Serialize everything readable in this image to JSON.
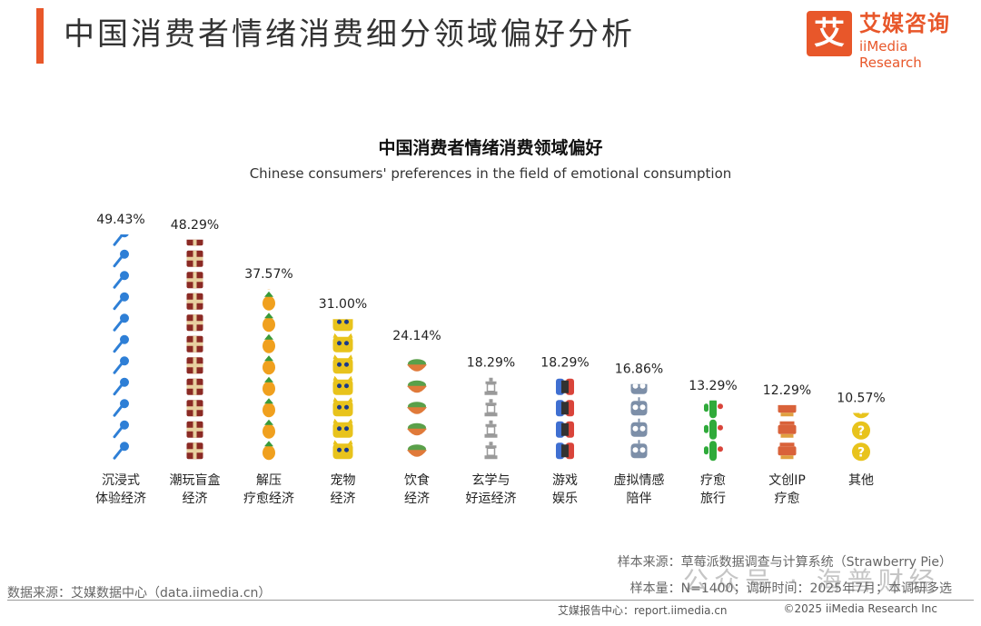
{
  "header": {
    "title": "中国消费者情绪消费细分领域偏好分析",
    "logo_mark": "艾",
    "logo_cn": "艾媒咨询",
    "logo_en": "iiMedia Research"
  },
  "chart_data": {
    "type": "bar",
    "title": "中国消费者情绪消费领域偏好",
    "subtitle": "Chinese consumers' preferences in the field of emotional consumption",
    "categories": [
      [
        "沉浸式",
        "体验经济"
      ],
      [
        "潮玩盲盒",
        "经济"
      ],
      [
        "解压",
        "疗愈经济"
      ],
      [
        "宠物",
        "经济"
      ],
      [
        "饮食",
        "经济"
      ],
      [
        "玄学与",
        "好运经济"
      ],
      [
        "游戏",
        "娱乐"
      ],
      [
        "虚拟情感",
        "陪伴"
      ],
      [
        "疗愈",
        "旅行"
      ],
      [
        "文创IP",
        "疗愈"
      ],
      [
        "其他"
      ]
    ],
    "values": [
      49.43,
      48.29,
      37.57,
      31.0,
      24.14,
      18.29,
      18.29,
      16.86,
      13.29,
      12.29,
      10.57
    ],
    "value_labels": [
      "49.43%",
      "48.29%",
      "37.57%",
      "31.00%",
      "24.14%",
      "18.29%",
      "18.29%",
      "16.86%",
      "13.29%",
      "12.29%",
      "10.57%"
    ],
    "icons": [
      "microphone-icon",
      "gift-box-icon",
      "pineapple-icon",
      "cat-face-icon",
      "food-bowl-icon",
      "temple-tower-icon",
      "game-controller-icon",
      "robot-icon",
      "cactus-icon",
      "lantern-icon",
      "question-medal-icon"
    ],
    "icon_colors": [
      "#2e7fd6",
      "#8b2a24",
      "#f0a01e",
      "#e8c31c",
      "#e07a3a",
      "#9a9a9a",
      "#3f6fd1",
      "#7d8fa8",
      "#2faa3a",
      "#d9623a",
      "#e8c31c"
    ],
    "ylim": [
      0,
      50
    ],
    "grid": false,
    "legend": "none"
  },
  "footer": {
    "source_left": "数据来源：艾媒数据中心（data.iimedia.cn）",
    "sample_source": "样本来源：草莓派数据调查与计算系统（Strawberry Pie）",
    "sample_size": "样本量：N=1400；调研时间：2025年7月；本调研多选",
    "report_center": "艾媒报告中心：report.iimedia.cn",
    "copyright": "©2025  iiMedia Research  Inc",
    "watermark": "公众号 · 海普财经"
  }
}
